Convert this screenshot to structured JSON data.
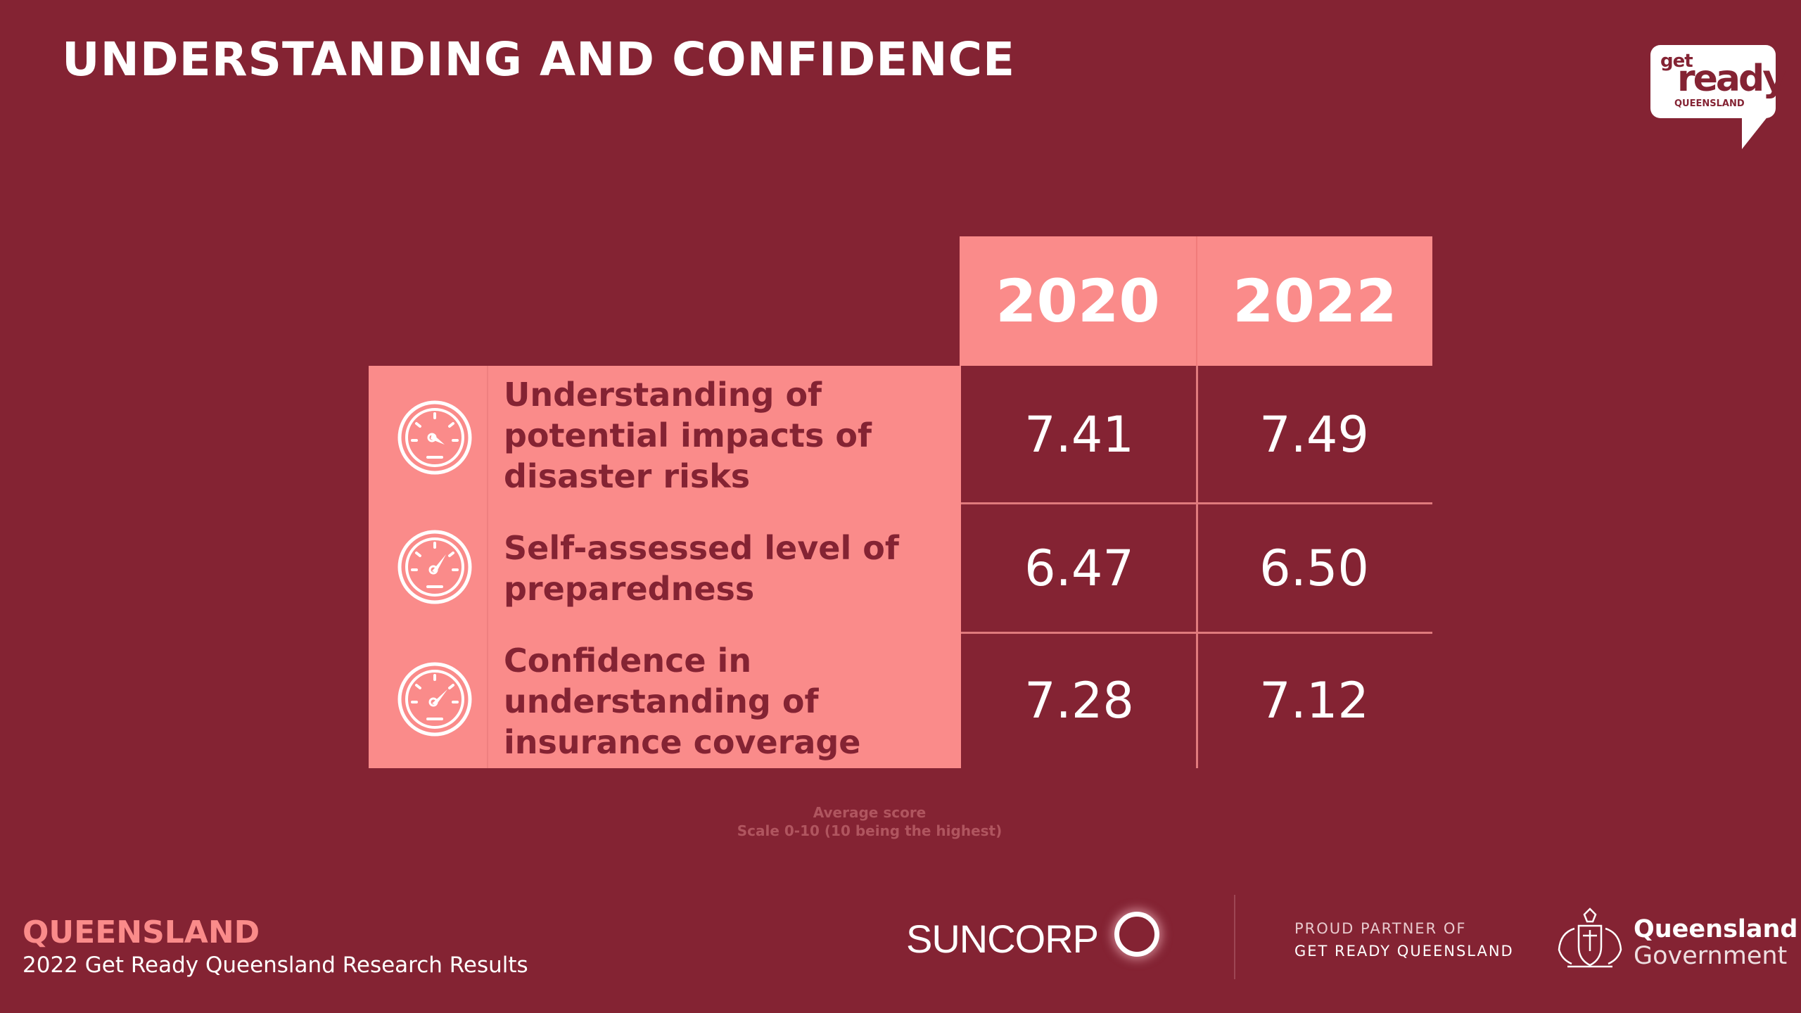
{
  "title": "UNDERSTANDING AND CONFIDENCE",
  "logo": {
    "get": "get",
    "ready": "ready",
    "sub": "QUEENSLAND"
  },
  "table": {
    "years": [
      "2020",
      "2022"
    ],
    "rows": [
      {
        "icon": "gauge-icon",
        "label": "Understanding of potential impacts of disaster risks",
        "v2020": "7.41",
        "v2022": "7.49"
      },
      {
        "icon": "gauge-icon",
        "label": "Self-assessed level of preparedness",
        "v2020": "6.47",
        "v2022": "6.50"
      },
      {
        "icon": "gauge-icon",
        "label": "Confidence in understanding of insurance coverage",
        "v2020": "7.28",
        "v2022": "7.12"
      }
    ]
  },
  "note": {
    "line1": "Average score",
    "line2": "Scale 0-10 (10 being the highest)"
  },
  "footer": {
    "region": "QUEENSLAND",
    "subtitle": "2022 Get Ready Queensland Research Results",
    "sponsor": "SUNCORP",
    "partner_line1": "PROUD PARTNER OF",
    "partner_line2": "GET READY QUEENSLAND",
    "gov_line1": "Queensland",
    "gov_line2": "Government"
  },
  "colors": {
    "background": "#842333",
    "accent": "#fa8b8a",
    "text": "#ffffff"
  }
}
